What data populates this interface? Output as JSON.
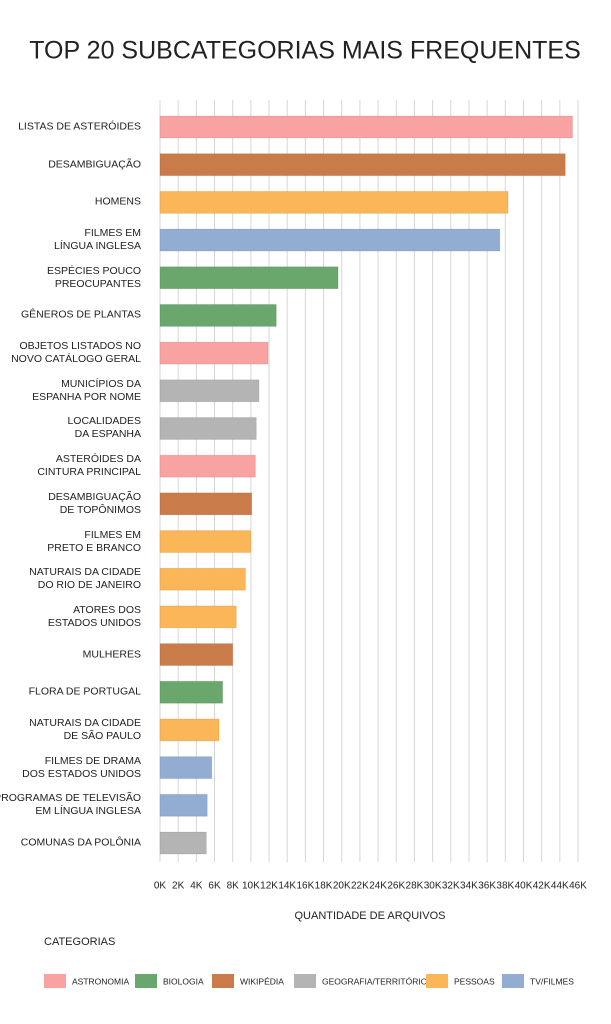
{
  "chart_data": {
    "type": "barh",
    "title": "TOP 20 SUBCATEGORIAS MAIS FREQUENTES",
    "xlabel": "QUANTIDADE DE ARQUIVOS",
    "categories": [
      "LISTAS DE ASTERÓIDES",
      "DESAMBIGUAÇÃO",
      "HOMENS",
      "FILMES EM\nLÍNGUA INGLESA",
      "ESPÉCIES POUCO\nPREOCUPANTES",
      "GÊNEROS DE PLANTAS",
      "OBJETOS LISTADOS NO\nNOVO CATÁLOGO GERAL",
      "MUNICÍPIOS DA\nESPANHA POR NOME",
      "LOCALIDADES\nDA ESPANHA",
      "ASTERÓIDES DA\nCINTURA PRINCIPAL",
      "DESAMBIGUAÇÃO\nDE TOPÔNIMOS",
      "FILMES EM\nPRETO E BRANCO",
      "NATURAIS DA CIDADE\nDO RIO DE JANEIRO",
      "ATORES DOS\nESTADOS UNIDOS",
      "MULHERES",
      "FLORA DE PORTUGAL",
      "NATURAIS DA CIDADE\nDE SÃO PAULO",
      "FILMES DE DRAMA\nDOS ESTADOS UNIDOS",
      "PROGRAMAS DE TELEVISÃO\nEM LÍNGUA INGLESA",
      "COMUNAS DA POLÔNIA"
    ],
    "values": [
      45400,
      44600,
      38300,
      37400,
      19600,
      12800,
      11900,
      10900,
      10600,
      10500,
      10100,
      10000,
      9400,
      8400,
      8000,
      6900,
      6500,
      5700,
      5200,
      5100
    ],
    "colors": [
      "#f9a2a2",
      "#c97b4a",
      "#fbb658",
      "#92acd2",
      "#6aa76c",
      "#6aa76c",
      "#f9a2a2",
      "#b4b4b4",
      "#b4b4b4",
      "#f9a2a2",
      "#c97b4a",
      "#fbb658",
      "#fbb658",
      "#fbb658",
      "#c97b4a",
      "#6aa76c",
      "#fbb658",
      "#92acd2",
      "#92acd2",
      "#b4b4b4"
    ],
    "xlim": [
      0,
      46000
    ],
    "xticks": [
      {
        "value": 0,
        "label": "0K"
      },
      {
        "value": 2000,
        "label": "2K"
      },
      {
        "value": 4000,
        "label": "4K"
      },
      {
        "value": 6000,
        "label": "6K"
      },
      {
        "value": 8000,
        "label": "8K"
      },
      {
        "value": 10000,
        "label": "10K"
      },
      {
        "value": 12000,
        "label": "12K"
      },
      {
        "value": 14000,
        "label": "14K"
      },
      {
        "value": 16000,
        "label": "16K"
      },
      {
        "value": 18000,
        "label": "18K"
      },
      {
        "value": 20000,
        "label": "20K"
      },
      {
        "value": 22000,
        "label": "22K"
      },
      {
        "value": 24000,
        "label": "24K"
      },
      {
        "value": 26000,
        "label": "26K"
      },
      {
        "value": 28000,
        "label": "28K"
      },
      {
        "value": 30000,
        "label": "30K"
      },
      {
        "value": 32000,
        "label": "32K"
      },
      {
        "value": 34000,
        "label": "34K"
      },
      {
        "value": 36000,
        "label": "36K"
      },
      {
        "value": 38000,
        "label": "38K"
      },
      {
        "value": 40000,
        "label": "40K"
      },
      {
        "value": 42000,
        "label": "42K"
      },
      {
        "value": 44000,
        "label": "44K"
      },
      {
        "value": 46000,
        "label": "46K"
      }
    ],
    "grid": true,
    "legend": {
      "title": "CATEGORIAS",
      "items": [
        {
          "name": "ASTRONOMIA",
          "color": "#f9a2a2"
        },
        {
          "name": "BIOLOGIA",
          "color": "#6aa76c"
        },
        {
          "name": "WIKIPÉDIA",
          "color": "#c97b4a"
        },
        {
          "name": "GEOGRAFIA/TERRITÓRIOS",
          "color": "#b4b4b4"
        },
        {
          "name": "PESSOAS",
          "color": "#fbb658"
        },
        {
          "name": "TV/FILMES",
          "color": "#92acd2"
        }
      ]
    }
  }
}
